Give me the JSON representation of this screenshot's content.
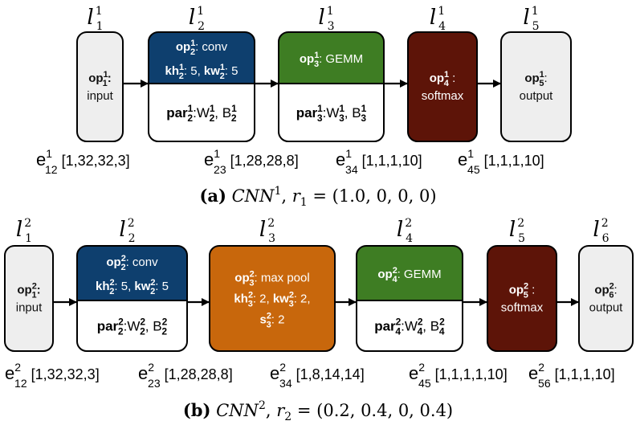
{
  "diagrams": [
    {
      "layers": [
        {
          "base": "l",
          "sub": "1",
          "sup": "1"
        },
        {
          "base": "l",
          "sub": "2",
          "sup": "1"
        },
        {
          "base": "l",
          "sub": "3",
          "sup": "1"
        },
        {
          "base": "l",
          "sub": "4",
          "sup": "1"
        },
        {
          "base": "l",
          "sub": "5",
          "sup": "1"
        }
      ],
      "nodes": [
        {
          "kind": "plain",
          "fill": "#eeeeee",
          "text_color": "#111111",
          "lines": [
            [
              {
                "t": "op",
                "b": true,
                "sup": "1",
                "sub": "1"
              },
              {
                "t": ":",
                "b": true
              }
            ],
            [
              {
                "t": "input"
              }
            ]
          ]
        },
        {
          "kind": "split",
          "fill": "#0e3f6e",
          "text_color": "#ffffff",
          "top": [
            [
              {
                "t": "op",
                "b": true,
                "sup": "1",
                "sub": "2"
              },
              {
                "t": ": conv"
              }
            ],
            [
              {
                "t": "kh",
                "b": true,
                "sup": "1",
                "sub": "2"
              },
              {
                "t": ": 5, "
              },
              {
                "t": "kw",
                "b": true,
                "sup": "1",
                "sub": "2"
              },
              {
                "t": ": 5"
              }
            ]
          ],
          "bottom": [
            [
              {
                "t": "par",
                "b": true,
                "sup": "1",
                "sub": "2"
              },
              {
                "t": ":W",
                "sup": "1",
                "sub": "2",
                "subb": true
              },
              {
                "t": ", B",
                "sup": "1",
                "sub": "2",
                "subb": true
              }
            ]
          ]
        },
        {
          "kind": "split",
          "fill": "#3e7d23",
          "text_color": "#ffffff",
          "top": [
            [
              {
                "t": "op",
                "b": true,
                "sup": "1",
                "sub": "3"
              },
              {
                "t": ": GEMM"
              }
            ]
          ],
          "bottom": [
            [
              {
                "t": "par",
                "b": true,
                "sup": "1",
                "sub": "3"
              },
              {
                "t": ":W",
                "sup": "1",
                "sub": "3",
                "subb": true
              },
              {
                "t": ", B",
                "sup": "1",
                "sub": "3",
                "subb": true
              }
            ]
          ]
        },
        {
          "kind": "plain",
          "fill": "#5d1408",
          "text_color": "#ffffff",
          "lines": [
            [
              {
                "t": "op",
                "b": true,
                "sup": "1",
                "sub": "4"
              },
              {
                "t": " :"
              }
            ],
            [
              {
                "t": "softmax"
              }
            ]
          ]
        },
        {
          "kind": "plain",
          "fill": "#eeeeee",
          "text_color": "#111111",
          "lines": [
            [
              {
                "t": "op",
                "b": true,
                "sup": "1",
                "sub": "5"
              },
              {
                "t": ":"
              }
            ],
            [
              {
                "t": "output"
              }
            ]
          ]
        }
      ],
      "edges": [
        {
          "base": "e",
          "sup": "1",
          "sub": "12",
          "shape": "[1,32,32,3]"
        },
        {
          "base": "e",
          "sup": "1",
          "sub": "23",
          "shape": "[1,28,28,8]"
        },
        {
          "base": "e",
          "sup": "1",
          "sub": "34",
          "shape": "[1,1,1,10]"
        },
        {
          "base": "e",
          "sup": "1",
          "sub": "45",
          "shape": "[1,1,1,10]"
        }
      ],
      "caption": {
        "label": "(a)",
        "name": "CNN",
        "name_sup": "1",
        "r": "r",
        "r_sub": "1",
        "value": " = (1.0, 0, 0, 0)"
      }
    },
    {
      "layers": [
        {
          "base": "l",
          "sub": "1",
          "sup": "2"
        },
        {
          "base": "l",
          "sub": "2",
          "sup": "2"
        },
        {
          "base": "l",
          "sub": "3",
          "sup": "2"
        },
        {
          "base": "l",
          "sub": "4",
          "sup": "2"
        },
        {
          "base": "l",
          "sub": "5",
          "sup": "2"
        },
        {
          "base": "l",
          "sub": "6",
          "sup": "2"
        }
      ],
      "nodes": [
        {
          "kind": "plain",
          "fill": "#eeeeee",
          "text_color": "#111111",
          "lines": [
            [
              {
                "t": "op",
                "b": true,
                "sup": "2",
                "sub": "1"
              },
              {
                "t": ":",
                "b": true
              }
            ],
            [
              {
                "t": "input"
              }
            ]
          ]
        },
        {
          "kind": "split",
          "fill": "#0e3f6e",
          "text_color": "#ffffff",
          "top": [
            [
              {
                "t": "op",
                "b": true,
                "sup": "2",
                "sub": "2"
              },
              {
                "t": ": conv"
              }
            ],
            [
              {
                "t": "kh",
                "b": true,
                "sup": "2",
                "sub": "2"
              },
              {
                "t": ": 5, "
              },
              {
                "t": "kw",
                "b": true,
                "sup": "2",
                "sub": "2"
              },
              {
                "t": ": 5"
              }
            ]
          ],
          "bottom": [
            [
              {
                "t": "par",
                "b": true,
                "sup": "2",
                "sub": "2"
              },
              {
                "t": ":W",
                "sup": "2",
                "sub": "2",
                "subb": true
              },
              {
                "t": ", B",
                "sup": "2",
                "sub": "2",
                "subb": true
              }
            ]
          ]
        },
        {
          "kind": "plain",
          "fill": "#c8670c",
          "text_color": "#ffffff",
          "lines": [
            [
              {
                "t": "op",
                "b": true,
                "sup": "2",
                "sub": "3"
              },
              {
                "t": ": max pool"
              }
            ],
            [
              {
                "t": "kh",
                "b": true,
                "sup": "2",
                "sub": "3"
              },
              {
                "t": ": 2, "
              },
              {
                "t": "kw",
                "b": true,
                "sup": "2",
                "sub": "3"
              },
              {
                "t": ": 2,"
              }
            ],
            [
              {
                "t": "s",
                "b": true,
                "sup": "2",
                "sub": "3"
              },
              {
                "t": ": 2"
              }
            ]
          ]
        },
        {
          "kind": "split",
          "fill": "#3e7d23",
          "text_color": "#ffffff",
          "top": [
            [
              {
                "t": "op",
                "b": true,
                "sup": "2",
                "sub": "4"
              },
              {
                "t": ": GEMM"
              }
            ]
          ],
          "bottom": [
            [
              {
                "t": "par",
                "b": true,
                "sup": "2",
                "sub": "4"
              },
              {
                "t": ":W",
                "sup": "2",
                "sub": "4",
                "subb": true
              },
              {
                "t": ", B",
                "sup": "2",
                "sub": "4",
                "subb": true
              }
            ]
          ]
        },
        {
          "kind": "plain",
          "fill": "#5d1408",
          "text_color": "#ffffff",
          "lines": [
            [
              {
                "t": "op",
                "b": true,
                "sup": "2",
                "sub": "5"
              },
              {
                "t": " :"
              }
            ],
            [
              {
                "t": "softmax"
              }
            ]
          ]
        },
        {
          "kind": "plain",
          "fill": "#eeeeee",
          "text_color": "#111111",
          "lines": [
            [
              {
                "t": "op",
                "b": true,
                "sup": "2",
                "sub": "6"
              },
              {
                "t": ":"
              }
            ],
            [
              {
                "t": "output"
              }
            ]
          ]
        }
      ],
      "edges": [
        {
          "base": "e",
          "sup": "2",
          "sub": "12",
          "shape": "[1,32,32,3]"
        },
        {
          "base": "e",
          "sup": "2",
          "sub": "23",
          "shape": "[1,28,28,8]"
        },
        {
          "base": "e",
          "sup": "2",
          "sub": "34",
          "shape": "[1,8,14,14]"
        },
        {
          "base": "e",
          "sup": "2",
          "sub": "45",
          "shape": "[1,1,1,1,10]"
        },
        {
          "base": "e",
          "sup": "2",
          "sub": "56",
          "shape": "[1,1,1,10]"
        }
      ],
      "caption": {
        "label": "(b)",
        "name": "CNN",
        "name_sup": "2",
        "r": "r",
        "r_sub": "2",
        "value": " = (0.2, 0.4, 0, 0.4)"
      }
    }
  ]
}
